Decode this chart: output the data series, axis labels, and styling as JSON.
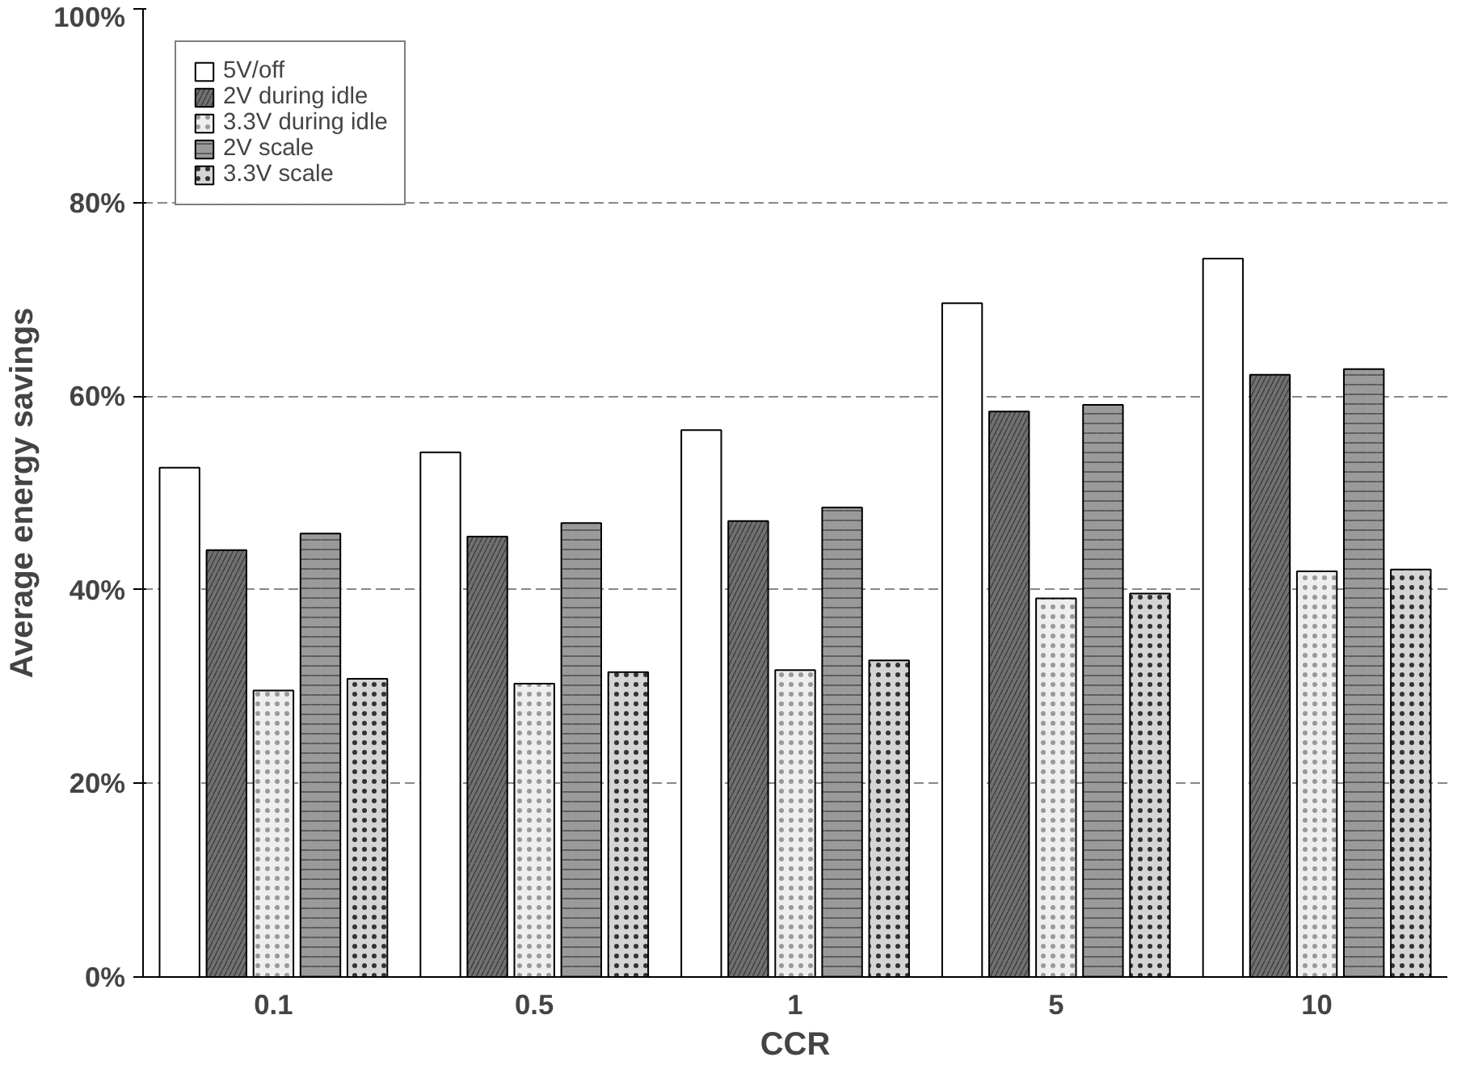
{
  "chart_data": {
    "type": "bar",
    "xlabel": "CCR",
    "ylabel": "Average energy savings",
    "categories": [
      "0.1",
      "0.5",
      "1",
      "5",
      "10"
    ],
    "series": [
      {
        "name": "5V/off",
        "color": "#ffffff",
        "values": [
          52.6,
          54.2,
          56.5,
          69.6,
          74.2
        ]
      },
      {
        "name": "2V during idle",
        "color": "#707070",
        "values": [
          44.1,
          45.5,
          47.1,
          58.4,
          62.2
        ]
      },
      {
        "name": "3.3V during idle",
        "color": "#eeeeee",
        "values": [
          29.6,
          30.3,
          31.7,
          39.1,
          41.9
        ]
      },
      {
        "name": "2V scale",
        "color": "#9a9a9a",
        "values": [
          45.8,
          46.9,
          48.5,
          59.1,
          62.8
        ]
      },
      {
        "name": "3.3V scale",
        "color": "#d4d4d4",
        "values": [
          30.8,
          31.5,
          32.7,
          39.6,
          42.1
        ]
      }
    ],
    "ylim": [
      0,
      100
    ],
    "yticks": [
      {
        "value": 0,
        "label": "0%"
      },
      {
        "value": 20,
        "label": "20%"
      },
      {
        "value": 40,
        "label": "40%"
      },
      {
        "value": 60,
        "label": "60%"
      },
      {
        "value": 80,
        "label": "80%"
      },
      {
        "value": 100,
        "label": "100%"
      }
    ],
    "grid": "y",
    "legend": "top left"
  }
}
